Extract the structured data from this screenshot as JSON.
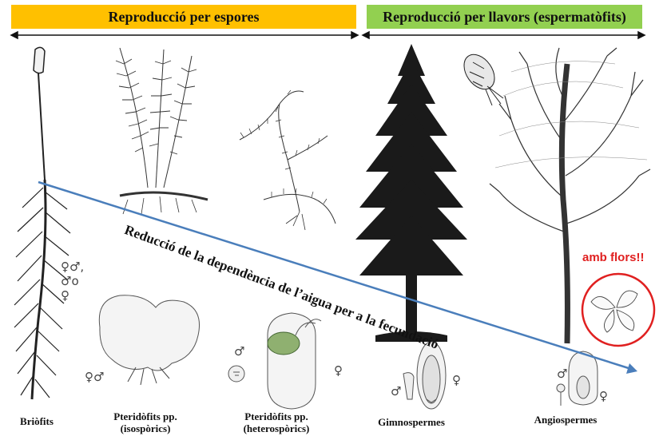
{
  "header": {
    "spores": {
      "label": "Reproducció per espores",
      "color": "#ffc000"
    },
    "seeds": {
      "label": "Reproducció per llavors (espermatòfits)",
      "color": "#92d050"
    }
  },
  "diagonal": {
    "label": "Reducció de la dependència de l’aigua per a la fecundació",
    "arrow_color": "#4a7ebb"
  },
  "flowers_note": {
    "label": "amb flors!!",
    "color": "#e02020"
  },
  "groups": [
    {
      "name": "Briòfits",
      "line2": ""
    },
    {
      "name": "Pteridòfits pp.",
      "line2": "(isospòrics)"
    },
    {
      "name": "Pteridòfits pp.",
      "line2": "(heterospòrics)"
    },
    {
      "name": "Gimnospermes",
      "line2": ""
    },
    {
      "name": "Angiospermes",
      "line2": ""
    }
  ],
  "sex_symbols": {
    "bryo_line1": "♀♂,",
    "bryo_line2": "♂o",
    "bryo_line3": "♀",
    "isosporic": "♀♂",
    "hetero_male": "♂",
    "hetero_female": "♀",
    "gymno_male": "♂",
    "gymno_female": "♀",
    "angio_male": "♂",
    "angio_female": "♀"
  }
}
